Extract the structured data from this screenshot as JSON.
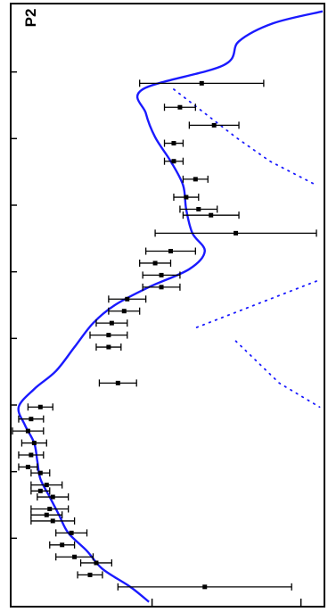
{
  "chart_data": {
    "type": "scatter",
    "orientation": "rotated-90",
    "panel_label": "P2",
    "xlabel": "",
    "ylabel": "",
    "tick_labels_visible": false,
    "xlim": [
      0,
      1
    ],
    "ylim": [
      0,
      1
    ],
    "grid": false,
    "colors": {
      "model": "#1a1aff",
      "data": "#000000",
      "frame": "#000000"
    },
    "model_curve": {
      "name": "",
      "style": "solid",
      "x": [
        0.01,
        0.03,
        0.06,
        0.1,
        0.14,
        0.18,
        0.22,
        0.26,
        0.3,
        0.34,
        0.38,
        0.41,
        0.44,
        0.47,
        0.5,
        0.53,
        0.57,
        0.61,
        0.64,
        0.67,
        0.7,
        0.73,
        0.76,
        0.79,
        0.82,
        0.85,
        0.88,
        0.91,
        0.94,
        0.97,
        0.995
      ],
      "y": [
        1.0,
        0.84,
        0.73,
        0.68,
        0.42,
        0.43,
        0.46,
        0.51,
        0.55,
        0.56,
        0.58,
        0.62,
        0.57,
        0.44,
        0.33,
        0.26,
        0.2,
        0.14,
        0.07,
        0.02,
        0.04,
        0.07,
        0.08,
        0.09,
        0.12,
        0.15,
        0.18,
        0.24,
        0.29,
        0.38,
        0.44
      ]
    },
    "model_branches": [
      {
        "style": "dotted",
        "x": [
          0.14,
          0.18,
          0.22,
          0.26,
          0.3
        ],
        "y": [
          0.52,
          0.62,
          0.72,
          0.83,
          0.98
        ]
      },
      {
        "style": "dotted",
        "x": [
          0.46,
          0.48,
          0.5,
          0.52,
          0.54
        ],
        "y": [
          0.98,
          0.88,
          0.78,
          0.68,
          0.58
        ]
      },
      {
        "style": "dotted",
        "x": [
          0.56,
          0.6,
          0.63,
          0.67
        ],
        "y": [
          0.72,
          0.8,
          0.86,
          0.99
        ]
      }
    ],
    "points": [
      {
        "x": 0.13,
        "y": 0.61,
        "xerr": 0.2
      },
      {
        "x": 0.17,
        "y": 0.54,
        "xerr": 0.05
      },
      {
        "x": 0.2,
        "y": 0.65,
        "xerr": 0.08
      },
      {
        "x": 0.23,
        "y": 0.52,
        "xerr": 0.03
      },
      {
        "x": 0.26,
        "y": 0.52,
        "xerr": 0.03
      },
      {
        "x": 0.29,
        "y": 0.59,
        "xerr": 0.04
      },
      {
        "x": 0.32,
        "y": 0.56,
        "xerr": 0.04
      },
      {
        "x": 0.34,
        "y": 0.6,
        "xerr": 0.06
      },
      {
        "x": 0.35,
        "y": 0.64,
        "xerr": 0.09
      },
      {
        "x": 0.38,
        "y": 0.72,
        "xerr": 0.26
      },
      {
        "x": 0.41,
        "y": 0.51,
        "xerr": 0.08
      },
      {
        "x": 0.43,
        "y": 0.46,
        "xerr": 0.05
      },
      {
        "x": 0.45,
        "y": 0.48,
        "xerr": 0.06
      },
      {
        "x": 0.47,
        "y": 0.48,
        "xerr": 0.06
      },
      {
        "x": 0.49,
        "y": 0.37,
        "xerr": 0.06
      },
      {
        "x": 0.51,
        "y": 0.36,
        "xerr": 0.05
      },
      {
        "x": 0.53,
        "y": 0.32,
        "xerr": 0.05
      },
      {
        "x": 0.55,
        "y": 0.31,
        "xerr": 0.06
      },
      {
        "x": 0.57,
        "y": 0.31,
        "xerr": 0.04
      },
      {
        "x": 0.63,
        "y": 0.34,
        "xerr": 0.06
      },
      {
        "x": 0.67,
        "y": 0.09,
        "xerr": 0.04
      },
      {
        "x": 0.69,
        "y": 0.06,
        "xerr": 0.04
      },
      {
        "x": 0.71,
        "y": 0.05,
        "xerr": 0.05
      },
      {
        "x": 0.73,
        "y": 0.07,
        "xerr": 0.04
      },
      {
        "x": 0.75,
        "y": 0.06,
        "xerr": 0.04
      },
      {
        "x": 0.77,
        "y": 0.05,
        "xerr": 0.03
      },
      {
        "x": 0.78,
        "y": 0.09,
        "xerr": 0.03
      },
      {
        "x": 0.8,
        "y": 0.11,
        "xerr": 0.05
      },
      {
        "x": 0.81,
        "y": 0.09,
        "xerr": 0.03
      },
      {
        "x": 0.82,
        "y": 0.13,
        "xerr": 0.05
      },
      {
        "x": 0.84,
        "y": 0.12,
        "xerr": 0.06
      },
      {
        "x": 0.85,
        "y": 0.11,
        "xerr": 0.05
      },
      {
        "x": 0.86,
        "y": 0.13,
        "xerr": 0.07
      },
      {
        "x": 0.88,
        "y": 0.19,
        "xerr": 0.05
      },
      {
        "x": 0.9,
        "y": 0.16,
        "xerr": 0.04
      },
      {
        "x": 0.92,
        "y": 0.2,
        "xerr": 0.06
      },
      {
        "x": 0.93,
        "y": 0.27,
        "xerr": 0.05
      },
      {
        "x": 0.95,
        "y": 0.25,
        "xerr": 0.04
      },
      {
        "x": 0.97,
        "y": 0.62,
        "xerr": 0.28
      }
    ]
  }
}
